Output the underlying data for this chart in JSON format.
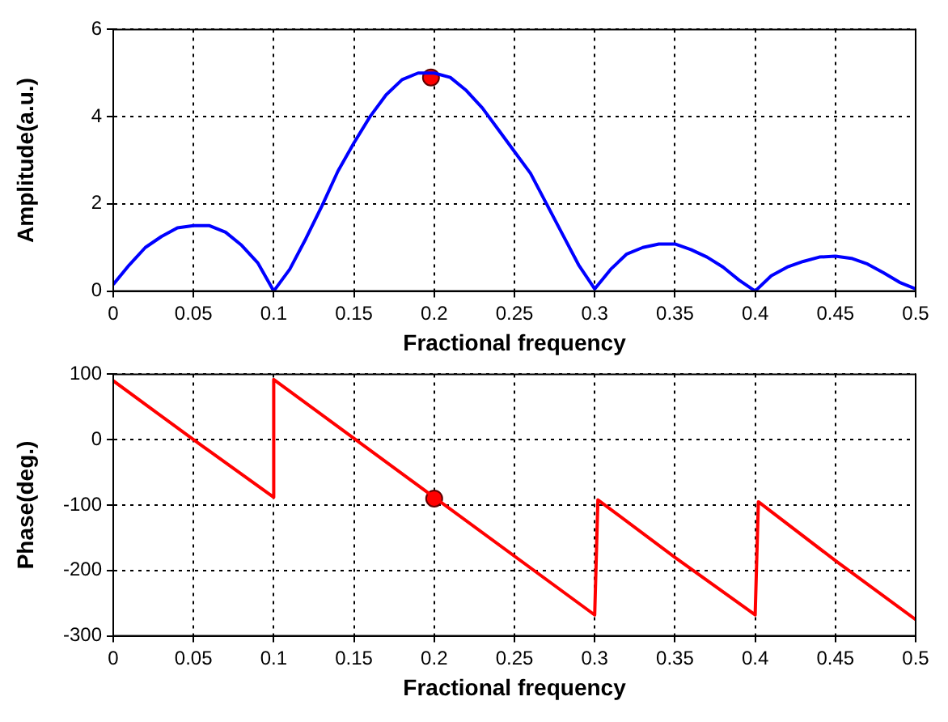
{
  "chart_data": [
    {
      "type": "line",
      "xlabel": "Fractional frequency",
      "ylabel": "Amplitude(a.u.)",
      "xlim": [
        0,
        0.5
      ],
      "ylim": [
        0,
        6
      ],
      "xticks": [
        0,
        0.05,
        0.1,
        0.15,
        0.2,
        0.25,
        0.3,
        0.35,
        0.4,
        0.45,
        0.5
      ],
      "yticks": [
        0,
        2,
        4,
        6
      ],
      "grid": true,
      "legend": false,
      "series": [
        {
          "color": "#0000ff",
          "x": [
            0,
            0.01,
            0.02,
            0.03,
            0.04,
            0.05,
            0.06,
            0.07,
            0.08,
            0.09,
            0.1,
            0.11,
            0.12,
            0.13,
            0.14,
            0.15,
            0.16,
            0.17,
            0.18,
            0.19,
            0.2,
            0.21,
            0.22,
            0.23,
            0.24,
            0.25,
            0.26,
            0.27,
            0.28,
            0.29,
            0.3,
            0.31,
            0.32,
            0.33,
            0.34,
            0.35,
            0.36,
            0.37,
            0.38,
            0.39,
            0.4,
            0.41,
            0.42,
            0.43,
            0.44,
            0.45,
            0.46,
            0.47,
            0.48,
            0.49,
            0.5
          ],
          "values": [
            0.15,
            0.6,
            1.0,
            1.25,
            1.45,
            1.5,
            1.5,
            1.35,
            1.05,
            0.65,
            0,
            0.5,
            1.2,
            1.95,
            2.75,
            3.4,
            4.0,
            4.5,
            4.85,
            5.0,
            5.0,
            4.9,
            4.6,
            4.2,
            3.7,
            3.2,
            2.7,
            2.0,
            1.3,
            0.6,
            0.05,
            0.5,
            0.85,
            1.0,
            1.08,
            1.08,
            0.95,
            0.78,
            0.55,
            0.25,
            0,
            0.35,
            0.55,
            0.68,
            0.78,
            0.8,
            0.75,
            0.62,
            0.42,
            0.2,
            0.05
          ]
        },
        {
          "type": "scatter",
          "color": "#ff0000",
          "marker": "circle",
          "x": [
            0.198
          ],
          "values": [
            4.9
          ]
        }
      ]
    },
    {
      "type": "line",
      "xlabel": "Fractional frequency",
      "ylabel": "Phase(deg.)",
      "xlim": [
        0,
        0.5
      ],
      "ylim": [
        -300,
        100
      ],
      "xticks": [
        0,
        0.05,
        0.1,
        0.15,
        0.2,
        0.25,
        0.3,
        0.35,
        0.4,
        0.45,
        0.5
      ],
      "yticks": [
        -300,
        -200,
        -100,
        0,
        100
      ],
      "grid": true,
      "legend": false,
      "series": [
        {
          "color": "#ff0000",
          "x": [
            0,
            0.05,
            0.1,
            0.1,
            0.2,
            0.3,
            0.302,
            0.35,
            0.4,
            0.402,
            0.45,
            0.5
          ],
          "values": [
            90,
            0,
            -88,
            92,
            -88,
            -268,
            -92,
            -180,
            -268,
            -95,
            -185,
            -275
          ]
        },
        {
          "type": "scatter",
          "color": "#ff0000",
          "marker": "circle",
          "x": [
            0.2
          ],
          "values": [
            -90
          ]
        }
      ]
    }
  ]
}
